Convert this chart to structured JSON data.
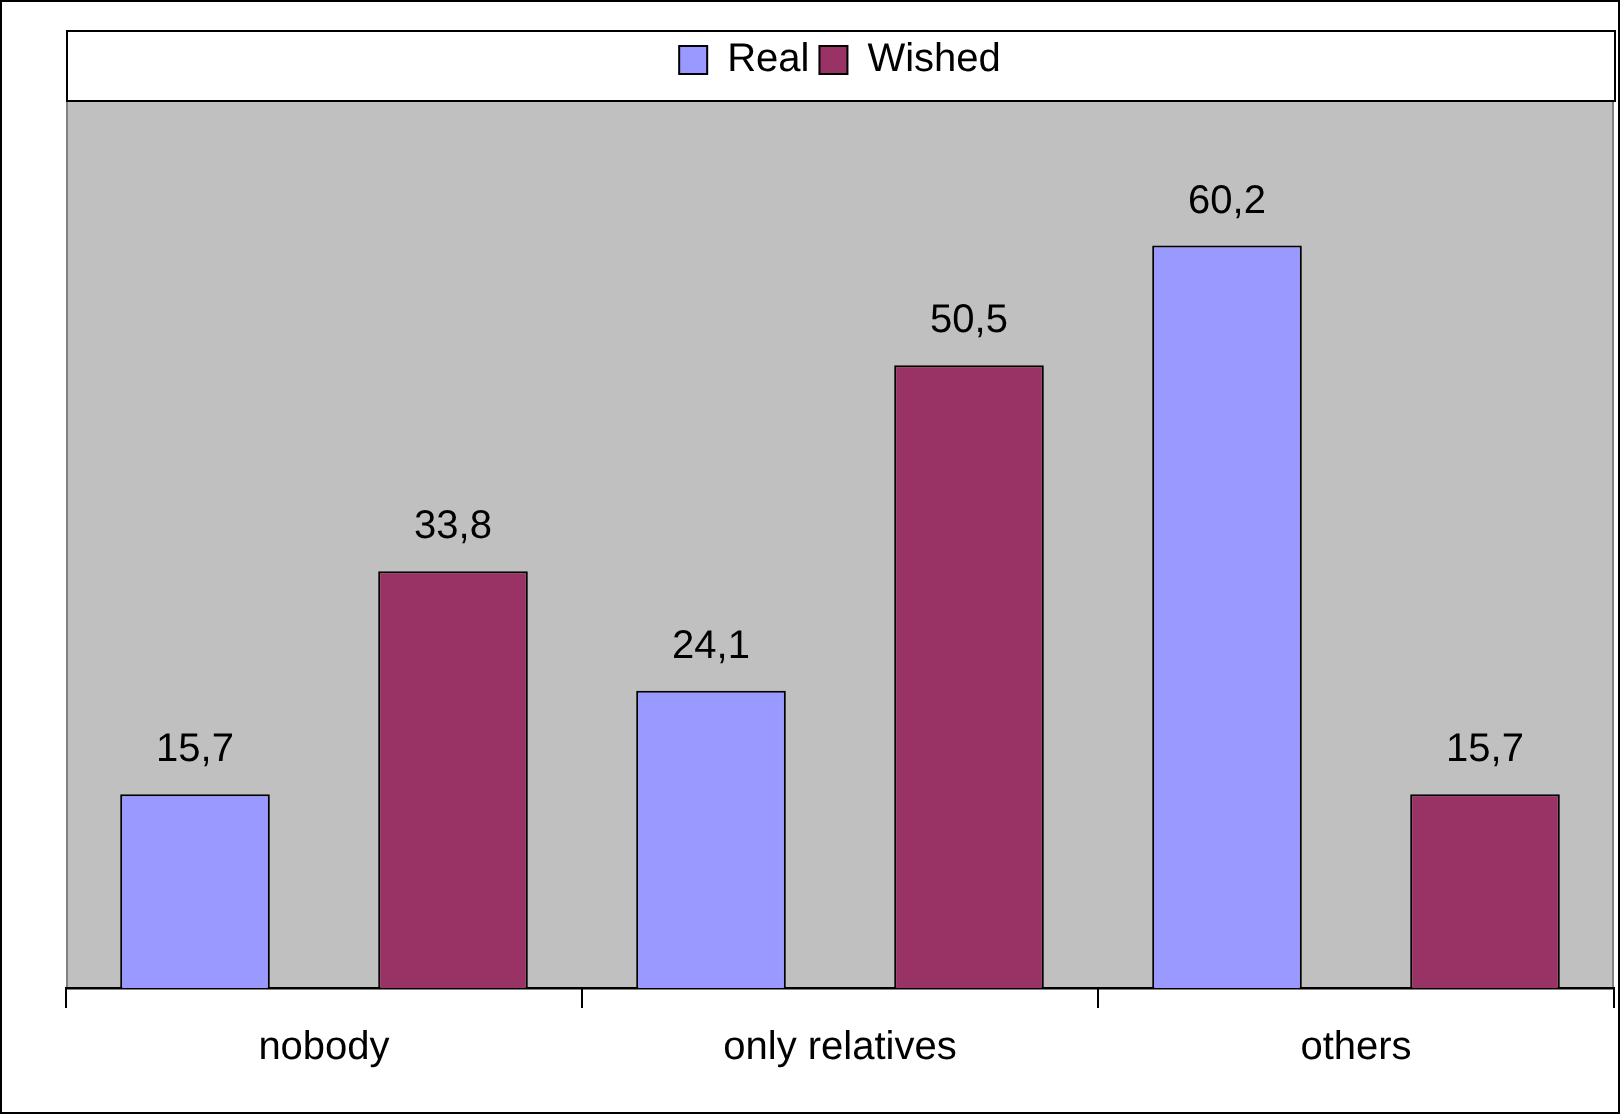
{
  "chart_data": {
    "type": "bar",
    "categories": [
      "nobody",
      "only relatives",
      "others"
    ],
    "series": [
      {
        "name": "Real",
        "color": "#9999ff",
        "values": [
          15.7,
          24.1,
          60.2
        ],
        "value_labels": [
          "15,7",
          "24,1",
          "60,2"
        ]
      },
      {
        "name": "Wished",
        "color": "#993366",
        "values": [
          33.8,
          50.5,
          15.7
        ],
        "value_labels": [
          "33,8",
          "50,5",
          "15,7"
        ]
      }
    ],
    "ylim": [
      0,
      72
    ],
    "tick_labels": "x",
    "legend": "top",
    "grid": false
  }
}
